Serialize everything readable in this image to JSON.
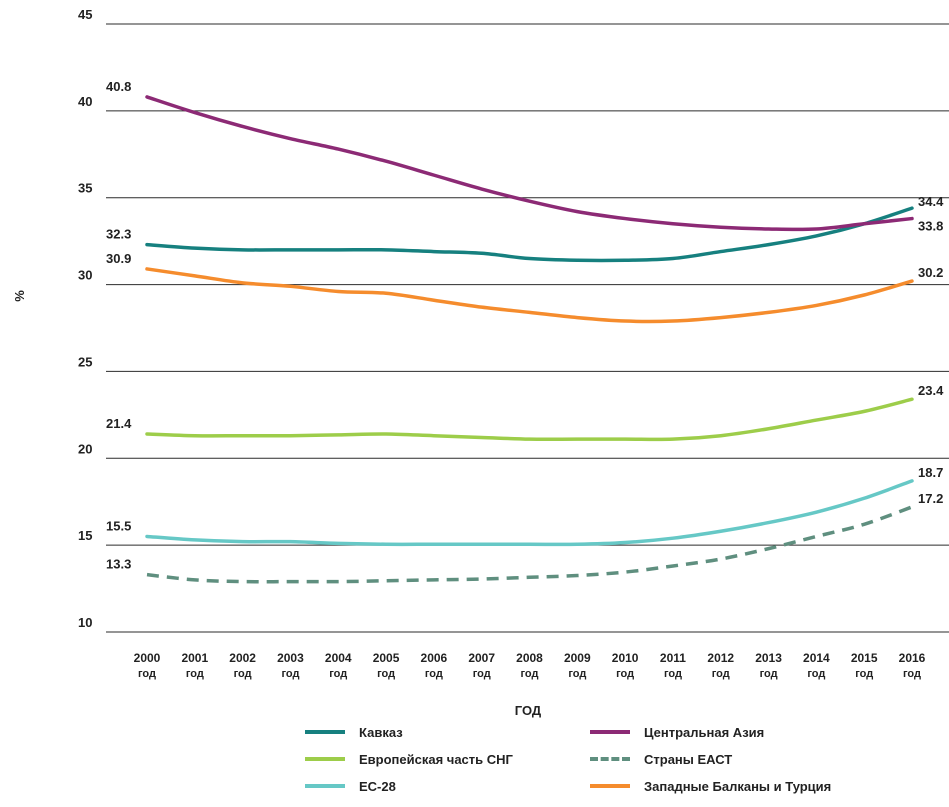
{
  "chart_data": {
    "type": "line",
    "xlabel": "ГОД",
    "ylabel": "%",
    "ylim": [
      10,
      45
    ],
    "yticks": [
      10,
      15,
      20,
      25,
      30,
      35,
      40,
      45
    ],
    "grid": "horizontal",
    "legend_placement": "bottom",
    "x": [
      2000,
      2001,
      2002,
      2003,
      2004,
      2005,
      2006,
      2007,
      2008,
      2009,
      2010,
      2011,
      2012,
      2013,
      2014,
      2015,
      2016
    ],
    "x_tick_labels": [
      "2000",
      "2001",
      "2002",
      "2003",
      "2004",
      "2005",
      "2006",
      "2007",
      "2008",
      "2009",
      "2010",
      "2011",
      "2012",
      "2013",
      "2014",
      "2015",
      "2016"
    ],
    "x_tick_suffix": "год",
    "series": [
      {
        "name": "Кавказ",
        "color": "#16807f",
        "style": "solid",
        "values": [
          32.3,
          32.1,
          32.0,
          32.0,
          32.0,
          32.0,
          31.9,
          31.8,
          31.5,
          31.4,
          31.4,
          31.5,
          31.9,
          32.3,
          32.8,
          33.5,
          34.4
        ],
        "start_label": "32.3",
        "end_label": "34.4"
      },
      {
        "name": "Центральная Азия",
        "color": "#8c2a75",
        "style": "solid",
        "values": [
          40.8,
          39.9,
          39.1,
          38.4,
          37.8,
          37.1,
          36.3,
          35.5,
          34.8,
          34.2,
          33.8,
          33.5,
          33.3,
          33.2,
          33.2,
          33.5,
          33.8
        ],
        "start_label": "40.8",
        "end_label": "33.8"
      },
      {
        "name": "Европейская  часть СНГ",
        "color": "#9dcd4a",
        "style": "solid",
        "values": [
          21.4,
          21.3,
          21.3,
          21.3,
          21.35,
          21.4,
          21.3,
          21.2,
          21.1,
          21.1,
          21.1,
          21.1,
          21.3,
          21.7,
          22.2,
          22.7,
          23.4
        ],
        "start_label": "21.4",
        "end_label": "23.4"
      },
      {
        "name": "Страны ЕАСТ",
        "color": "#5f8f7f",
        "style": "dashed",
        "values": [
          13.3,
          13.0,
          12.9,
          12.9,
          12.9,
          12.95,
          13.0,
          13.05,
          13.15,
          13.25,
          13.45,
          13.8,
          14.2,
          14.8,
          15.5,
          16.2,
          17.2
        ],
        "start_label": "13.3",
        "end_label": "17.2"
      },
      {
        "name": "ЕС-28",
        "color": "#66c8c6",
        "style": "solid",
        "values": [
          15.5,
          15.3,
          15.2,
          15.2,
          15.1,
          15.05,
          15.05,
          15.05,
          15.05,
          15.05,
          15.15,
          15.4,
          15.8,
          16.3,
          16.9,
          17.7,
          18.7
        ],
        "start_label": "15.5",
        "end_label": "18.7"
      },
      {
        "name": "Западные Балканы и Турция",
        "color": "#f58c2d",
        "style": "solid",
        "values": [
          30.9,
          30.5,
          30.1,
          29.9,
          29.6,
          29.5,
          29.1,
          28.7,
          28.4,
          28.1,
          27.9,
          27.9,
          28.1,
          28.4,
          28.8,
          29.4,
          30.2
        ],
        "start_label": "30.9",
        "end_label": "30.2"
      }
    ]
  }
}
